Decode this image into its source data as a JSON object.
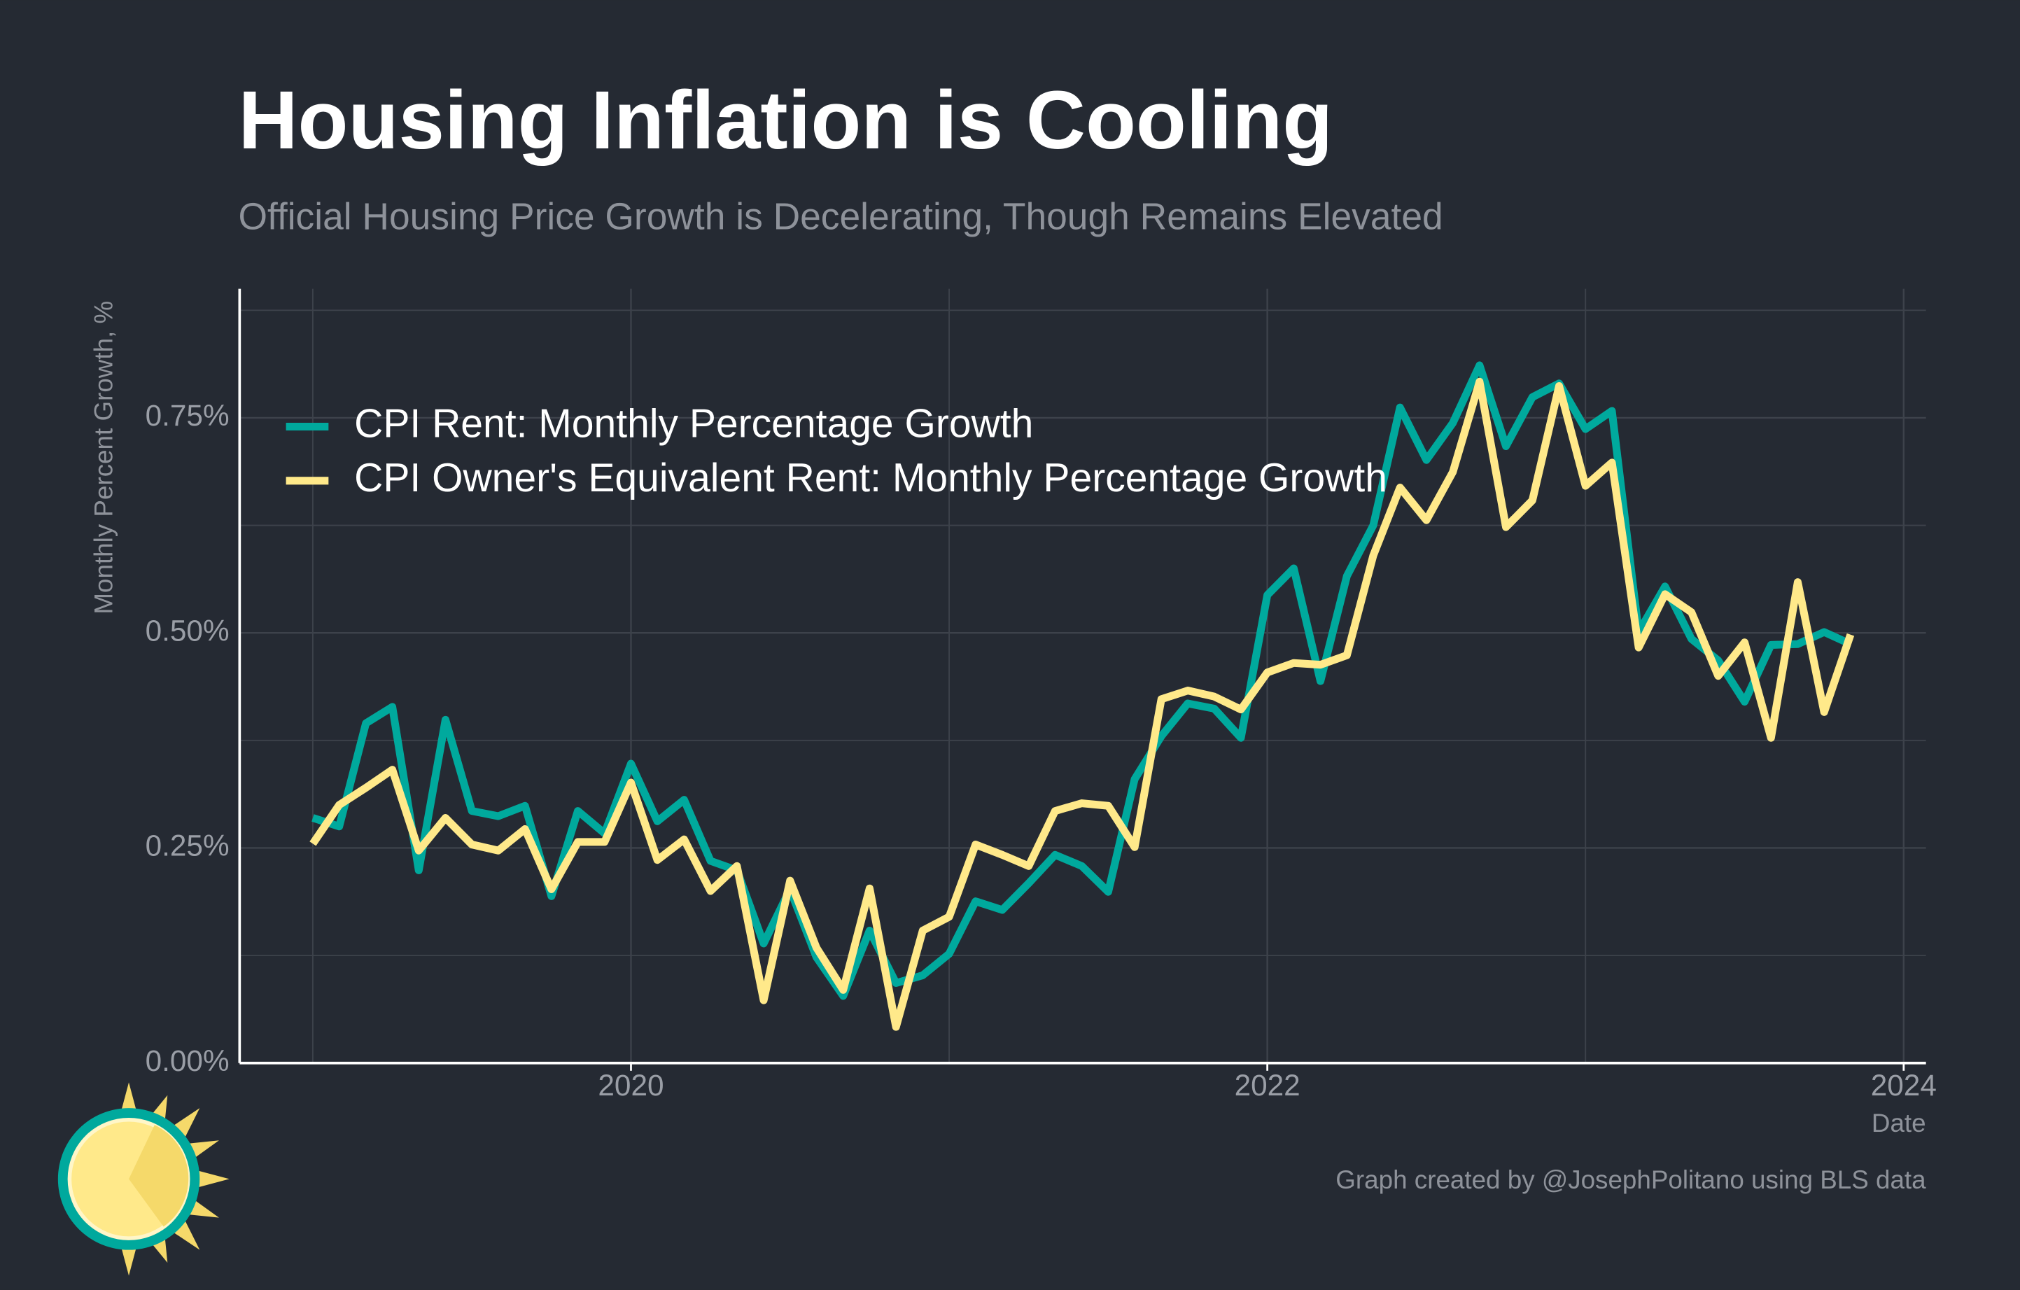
{
  "chart_data": {
    "type": "line",
    "title": "Housing Inflation is Cooling",
    "subtitle": "Official Housing Price Growth is Decelerating, Though Remains Elevated",
    "y_label": "Monthly Percent Growth, %",
    "x_label": "Date",
    "caption": "Graph created by @JosephPolitano using BLS data",
    "x": [
      2019,
      2019.083,
      2019.167,
      2019.25,
      2019.333,
      2019.417,
      2019.5,
      2019.583,
      2019.667,
      2019.75,
      2019.833,
      2019.917,
      2020,
      2020.083,
      2020.167,
      2020.25,
      2020.333,
      2020.417,
      2020.5,
      2020.583,
      2020.667,
      2020.75,
      2020.833,
      2020.917,
      2021,
      2021.083,
      2021.167,
      2021.25,
      2021.333,
      2021.417,
      2021.5,
      2021.583,
      2021.667,
      2021.75,
      2021.833,
      2021.917,
      2022,
      2022.083,
      2022.167,
      2022.25,
      2022.333,
      2022.417,
      2022.5,
      2022.583,
      2022.667,
      2022.75,
      2022.833,
      2022.917,
      2023,
      2023.083,
      2023.167,
      2023.25,
      2023.333,
      2023.417,
      2023.5,
      2023.583,
      2023.667,
      2023.75,
      2023.833
    ],
    "series": [
      {
        "name": "CPI Rent: Monthly Percentage Growth",
        "color": "#00a99d",
        "values": [
          0.285,
          0.275,
          0.395,
          0.414,
          0.224,
          0.399,
          0.293,
          0.287,
          0.299,
          0.194,
          0.293,
          0.267,
          0.348,
          0.281,
          0.306,
          0.235,
          0.224,
          0.139,
          0.202,
          0.123,
          0.078,
          0.154,
          0.093,
          0.102,
          0.127,
          0.188,
          0.178,
          0.209,
          0.242,
          0.229,
          0.199,
          0.33,
          0.38,
          0.418,
          0.412,
          0.378,
          0.544,
          0.575,
          0.444,
          0.566,
          0.625,
          0.762,
          0.701,
          0.744,
          0.811,
          0.717,
          0.774,
          0.79,
          0.737,
          0.758,
          0.501,
          0.554,
          0.493,
          0.468,
          0.42,
          0.486,
          0.487,
          0.501,
          0.487
        ]
      },
      {
        "name": "CPI Owner's Equivalent Rent: Monthly Percentage Growth",
        "color": "#ffe98a",
        "values": [
          0.255,
          0.3,
          0.32,
          0.341,
          0.247,
          0.285,
          0.254,
          0.247,
          0.272,
          0.202,
          0.257,
          0.257,
          0.326,
          0.236,
          0.26,
          0.2,
          0.229,
          0.073,
          0.212,
          0.134,
          0.085,
          0.203,
          0.042,
          0.154,
          0.17,
          0.254,
          0.242,
          0.229,
          0.293,
          0.302,
          0.299,
          0.251,
          0.423,
          0.433,
          0.426,
          0.411,
          0.454,
          0.465,
          0.463,
          0.474,
          0.59,
          0.669,
          0.631,
          0.687,
          0.792,
          0.623,
          0.654,
          0.787,
          0.671,
          0.698,
          0.483,
          0.545,
          0.524,
          0.45,
          0.489,
          0.378,
          0.559,
          0.408,
          0.498
        ]
      }
    ],
    "xlim": [
      2018.77,
      2024.07
    ],
    "xticks": [
      2020,
      2022,
      2024
    ],
    "x_minor_ticks": [
      2019,
      2021,
      2023
    ],
    "ylim": [
      0,
      0.9
    ],
    "yticks": [
      {
        "value": 0,
        "label": "0.00%"
      },
      {
        "value": 0.25,
        "label": "0.25%"
      },
      {
        "value": 0.5,
        "label": "0.50%"
      },
      {
        "value": 0.75,
        "label": "0.75%"
      }
    ],
    "y_minor_ticks": [
      0.125,
      0.375,
      0.625,
      0.875
    ],
    "grid": true,
    "legend": "upper left"
  }
}
